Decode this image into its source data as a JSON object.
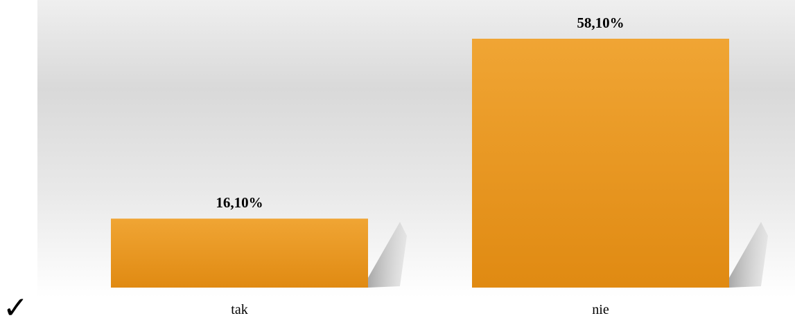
{
  "chart_data": {
    "type": "bar",
    "categories": [
      "tak",
      "nie"
    ],
    "values": [
      16.1,
      58.1
    ],
    "value_labels": [
      "16,10%",
      "58,10%"
    ],
    "title": "",
    "xlabel": "",
    "ylabel": "",
    "ylim": [
      0,
      58.1
    ],
    "grid": false,
    "legend": "none",
    "colors": {
      "bar_top": "#f0a534",
      "bar_bottom": "#e08a12",
      "shadow": "#b5b5b5",
      "background_top": "#efefef",
      "background_mid": "#d9d9d9",
      "background_bottom": "#ffffff"
    }
  },
  "decorations": {
    "check_icon": "check-mark-icon",
    "check_glyph": "✓"
  }
}
